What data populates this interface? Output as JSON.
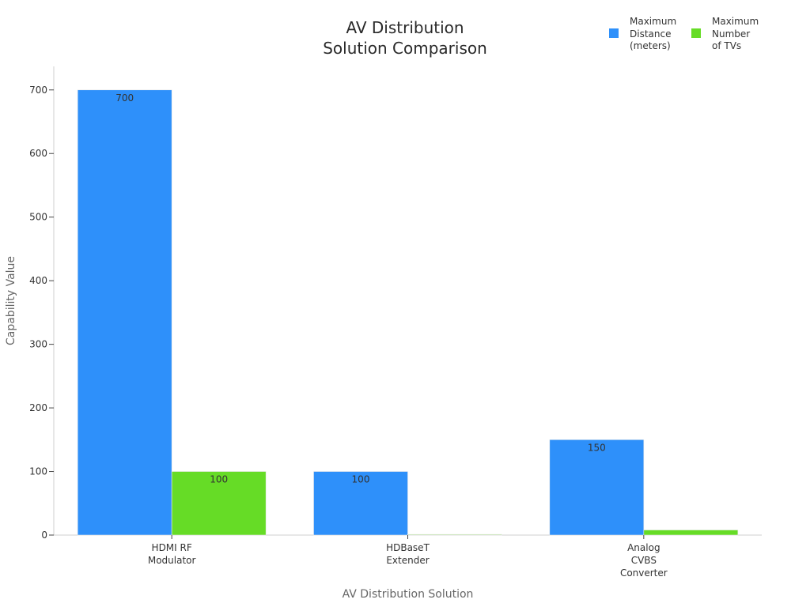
{
  "chart_data": {
    "type": "bar",
    "title": [
      "AV Distribution",
      "Solution Comparison"
    ],
    "xlabel": "AV Distribution Solution",
    "ylabel": "Capability Value",
    "categories": [
      [
        "HDMI RF",
        "Modulator"
      ],
      [
        "HDBaseT",
        "Extender"
      ],
      [
        "Analog",
        "CVBS",
        "Converter"
      ]
    ],
    "series": [
      {
        "name": "Maximum\nDistance\n(meters)",
        "values": [
          700,
          100,
          150
        ],
        "color": "#2e90fa",
        "labels": [
          "700",
          "100",
          "150"
        ]
      },
      {
        "name": "Maximum\nNumber\nof TVs",
        "values": [
          100,
          1,
          8
        ],
        "color": "#66dc26",
        "labels": [
          "100",
          "",
          ""
        ]
      }
    ],
    "ylim": [
      0,
      737
    ],
    "yticks": [
      0,
      100,
      200,
      300,
      400,
      500,
      600,
      700
    ],
    "grid": false,
    "legend_position": "top-right"
  }
}
